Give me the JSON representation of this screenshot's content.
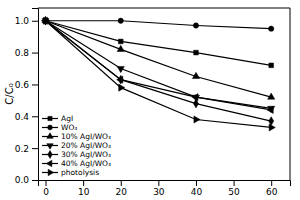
{
  "chart_data": {
    "type": "line",
    "ylabel": "C/C₀",
    "x": [
      0,
      20,
      40,
      60
    ],
    "series": [
      {
        "name": "AgI",
        "color": "#000000",
        "marker": "square",
        "values": [
          1.0,
          0.87,
          0.8,
          0.72
        ]
      },
      {
        "name": "WO₃",
        "color": "#000000",
        "marker": "circle",
        "values": [
          1.0,
          1.0,
          0.97,
          0.95
        ]
      },
      {
        "name": "10% AgI/WO₃",
        "color": "#000000",
        "marker": "triangle-up",
        "values": [
          1.0,
          0.82,
          0.65,
          0.52
        ]
      },
      {
        "name": "20% AgI/WO₃",
        "color": "#000000",
        "marker": "triangle-down",
        "values": [
          1.0,
          0.7,
          0.52,
          0.45
        ]
      },
      {
        "name": "30% AgI/WO₃",
        "color": "#000000",
        "marker": "diamond",
        "values": [
          1.0,
          0.63,
          0.48,
          0.37
        ]
      },
      {
        "name": "40% AgI/WO₃",
        "color": "#000000",
        "marker": "triangle-left",
        "values": [
          1.0,
          0.63,
          0.52,
          0.44
        ]
      },
      {
        "name": "photolysis",
        "color": "#000000",
        "marker": "triangle-right",
        "values": [
          1.0,
          0.58,
          0.38,
          0.33
        ]
      }
    ],
    "xlim": [
      -2,
      65
    ],
    "ylim": [
      0.0,
      1.08
    ],
    "xticks": [
      0,
      10,
      20,
      30,
      40,
      50,
      60
    ],
    "yticks": [
      {
        "value": 0.0,
        "label": "0.0"
      },
      0.2,
      0.4,
      0.6,
      0.8,
      {
        "value": 1.0,
        "label": "1.0"
      }
    ],
    "legend": "lower left"
  }
}
